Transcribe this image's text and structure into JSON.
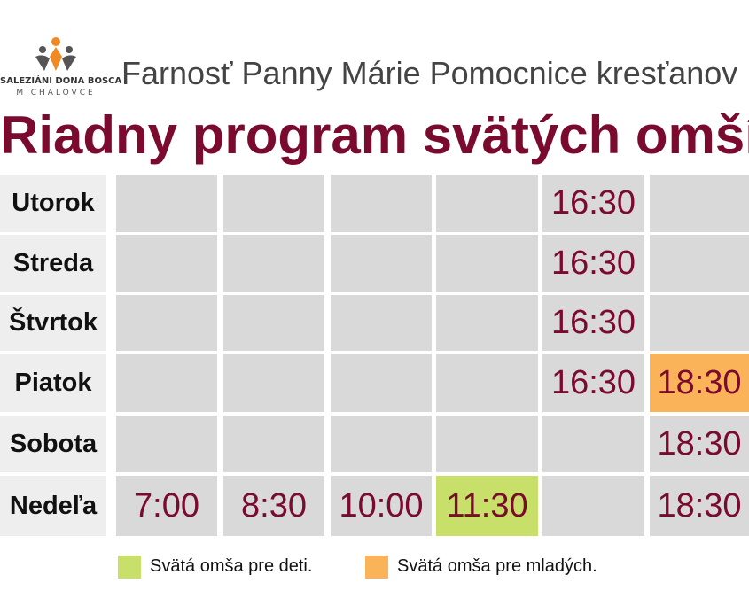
{
  "header": {
    "logo_name": "SALEZIÁNI DONA BOSCA",
    "logo_place": "MICHALOVCE",
    "parish": "Farnosť Panny Márie Pomocnice kresťanov",
    "title": "Riadny program svätých omší"
  },
  "table": {
    "cell_color": "#d9d9d9",
    "rows": [
      {
        "day": "Utorok",
        "times": [
          null,
          null,
          null,
          null,
          {
            "time": "16:30"
          },
          null
        ]
      },
      {
        "day": "Streda",
        "times": [
          null,
          null,
          null,
          null,
          {
            "time": "16:30"
          },
          null
        ]
      },
      {
        "day": "Štvrtok",
        "times": [
          null,
          null,
          null,
          null,
          {
            "time": "16:30"
          },
          null
        ]
      },
      {
        "day": "Piatok",
        "times": [
          null,
          null,
          null,
          null,
          {
            "time": "16:30"
          },
          {
            "time": "18:30",
            "color": "#fbb35a"
          }
        ]
      },
      {
        "day": "Sobota",
        "times": [
          null,
          null,
          null,
          null,
          null,
          {
            "time": "18:30"
          }
        ]
      },
      {
        "day": "Nedeľa",
        "times": [
          {
            "time": "7:00"
          },
          {
            "time": "8:30"
          },
          {
            "time": "10:00"
          },
          {
            "time": "11:30",
            "color": "#c8e06a"
          },
          null,
          {
            "time": "18:30"
          }
        ]
      }
    ]
  },
  "legend": [
    {
      "label": "Svätá omša pre deti.",
      "color": "#c8e06a"
    },
    {
      "label": "Svätá omša pre mladých.",
      "color": "#fbb35a"
    }
  ]
}
